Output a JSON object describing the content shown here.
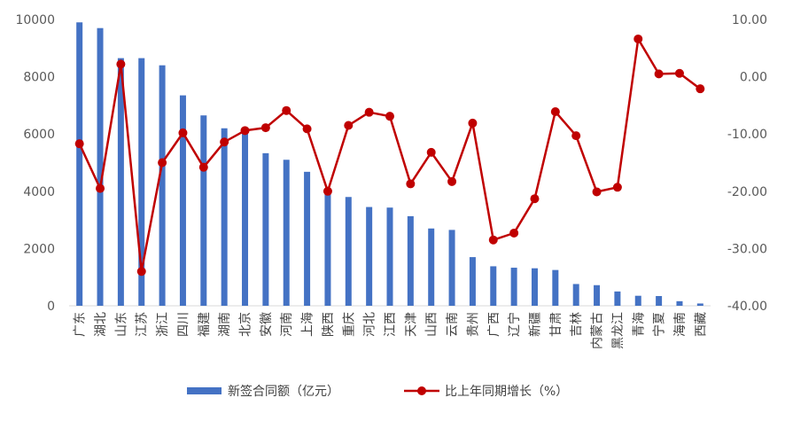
{
  "chart_data": {
    "type": "bar+line",
    "categories": [
      "广东",
      "湖北",
      "山东",
      "江苏",
      "浙江",
      "四川",
      "福建",
      "湖南",
      "北京",
      "安徽",
      "河南",
      "上海",
      "陕西",
      "重庆",
      "河北",
      "江西",
      "天津",
      "山西",
      "云南",
      "贵州",
      "广西",
      "辽宁",
      "新疆",
      "甘肃",
      "吉林",
      "内蒙古",
      "黑龙江",
      "青海",
      "宁夏",
      "海南",
      "西藏"
    ],
    "series": [
      {
        "name": "新签合同额（亿元）",
        "type": "bar",
        "axis": "left",
        "color": "#4472C4",
        "values": [
          9900,
          9700,
          8650,
          8650,
          8400,
          7350,
          6650,
          6200,
          6100,
          5330,
          5100,
          4680,
          4080,
          3800,
          3450,
          3430,
          3130,
          2700,
          2650,
          1700,
          1380,
          1330,
          1310,
          1250,
          760,
          720,
          500,
          350,
          340,
          160,
          80
        ]
      },
      {
        "name": "比上年同期增长（%）",
        "type": "line",
        "axis": "right",
        "color": "#C00000",
        "values": [
          -11.7,
          -19.5,
          2.2,
          -34.0,
          -15.0,
          -9.8,
          -15.8,
          -11.4,
          -9.4,
          -8.9,
          -5.9,
          -9.1,
          -20.0,
          -8.5,
          -6.2,
          -6.9,
          -18.7,
          -13.2,
          -18.3,
          -8.1,
          -28.5,
          -27.3,
          -21.3,
          -6.1,
          -10.3,
          -20.1,
          -19.3,
          6.6,
          0.5,
          0.6,
          -2.1
        ]
      }
    ],
    "y_left": {
      "ylim": [
        0,
        10000
      ],
      "ticks": [
        "0",
        "2000",
        "4000",
        "6000",
        "8000",
        "10000"
      ]
    },
    "y_right": {
      "ylim": [
        -40,
        10
      ],
      "ticks": [
        "-40.00",
        "-30.00",
        "-20.00",
        "-10.00",
        "0.00",
        "10.00"
      ]
    },
    "grid": false,
    "legend": "bottom"
  }
}
